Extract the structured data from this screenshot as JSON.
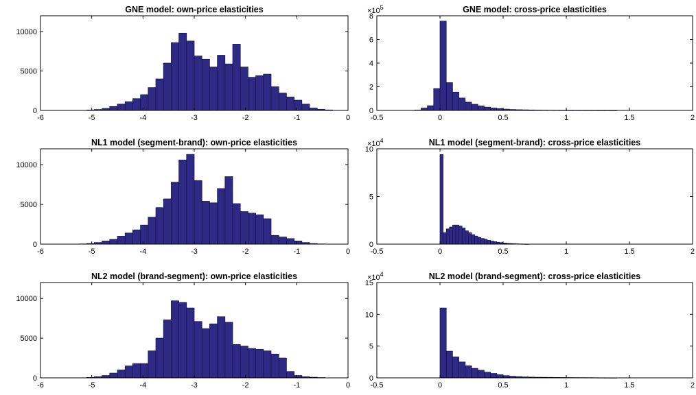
{
  "figure": {
    "colors": {
      "bar_fill": "#2e2a84",
      "bar_stroke": "#15124d",
      "axis": "#000000",
      "background": "#ffffff"
    }
  },
  "chart_data": [
    {
      "type": "bar",
      "title": "GNE model: own-price elasticities",
      "xlabel": "",
      "ylabel": "",
      "xlim": [
        -6,
        0
      ],
      "ylim": [
        0,
        12000
      ],
      "xticks": [
        -6,
        -5,
        -4,
        -3,
        -2,
        -1,
        0
      ],
      "xtick_labels": [
        "-6",
        "-5",
        "-4",
        "-3",
        "-2",
        "-1",
        "0"
      ],
      "yticks": [
        0,
        5000,
        10000
      ],
      "ytick_labels": [
        "0",
        "5000",
        "10000"
      ],
      "exponent_label": "",
      "bin_edges": [
        -6.0,
        -5.85,
        -5.7,
        -5.55,
        -5.4,
        -5.25,
        -5.1,
        -4.95,
        -4.8,
        -4.65,
        -4.5,
        -4.35,
        -4.2,
        -4.05,
        -3.9,
        -3.75,
        -3.6,
        -3.45,
        -3.3,
        -3.15,
        -3.0,
        -2.85,
        -2.7,
        -2.55,
        -2.4,
        -2.25,
        -2.1,
        -1.95,
        -1.8,
        -1.65,
        -1.5,
        -1.35,
        -1.2,
        -1.05,
        -0.9,
        -0.75,
        -0.6,
        -0.45,
        -0.3,
        -0.15,
        0.0
      ],
      "values": [
        0,
        0,
        0,
        0,
        0,
        0,
        50,
        120,
        250,
        500,
        800,
        1100,
        1500,
        2000,
        2900,
        4000,
        6000,
        8600,
        9800,
        8800,
        6900,
        6500,
        5500,
        7000,
        5900,
        8400,
        5500,
        4200,
        4400,
        4600,
        3000,
        2200,
        1700,
        1300,
        800,
        300,
        150,
        60,
        0,
        0
      ]
    },
    {
      "type": "bar",
      "title": "GNE model: cross-price elasticities",
      "xlabel": "",
      "ylabel": "",
      "xlim": [
        -0.5,
        2
      ],
      "ylim": [
        0,
        800000
      ],
      "xticks": [
        -0.5,
        0,
        0.5,
        1,
        1.5,
        2
      ],
      "xtick_labels": [
        "-0.5",
        "0",
        "0.5",
        "1",
        "1.5",
        "2"
      ],
      "yticks": [
        0,
        200000,
        400000,
        600000,
        800000
      ],
      "ytick_labels": [
        "0",
        "2",
        "4",
        "6",
        "8"
      ],
      "exponent_label": "5",
      "bin_edges": [
        -0.5,
        -0.45,
        -0.4,
        -0.35,
        -0.3,
        -0.25,
        -0.2,
        -0.15,
        -0.1,
        -0.05,
        0.0,
        0.05,
        0.1,
        0.15,
        0.2,
        0.25,
        0.3,
        0.35,
        0.4,
        0.45,
        0.5,
        0.55,
        0.6,
        0.65,
        0.7,
        0.75,
        0.8,
        0.85,
        0.9,
        0.95,
        1.0,
        1.05,
        1.1,
        1.15,
        1.2,
        1.25,
        1.3,
        1.35,
        1.4,
        1.45,
        1.5,
        1.55,
        1.6,
        1.65,
        1.7,
        1.75,
        1.8,
        1.85,
        1.9,
        1.95,
        2.0
      ],
      "values": [
        0,
        0,
        0,
        0,
        0,
        0,
        3000,
        20000,
        40000,
        185000,
        755000,
        235000,
        155000,
        105000,
        70000,
        52000,
        38000,
        28000,
        20000,
        15000,
        11000,
        8000,
        6000,
        5000,
        4000,
        3000,
        2500,
        2000,
        1500,
        1200,
        1000,
        800,
        700,
        600,
        500,
        400,
        300,
        200,
        0,
        0,
        0,
        0,
        0,
        0,
        0,
        0,
        0,
        0,
        0,
        0
      ]
    },
    {
      "type": "bar",
      "title": "NL1 model (segment-brand): own-price elasticities",
      "xlabel": "",
      "ylabel": "",
      "xlim": [
        -6,
        0
      ],
      "ylim": [
        0,
        12000
      ],
      "xticks": [
        -6,
        -5,
        -4,
        -3,
        -2,
        -1,
        0
      ],
      "xtick_labels": [
        "-6",
        "-5",
        "-4",
        "-3",
        "-2",
        "-1",
        "0"
      ],
      "yticks": [
        0,
        5000,
        10000
      ],
      "ytick_labels": [
        "0",
        "5000",
        "10000"
      ],
      "exponent_label": "",
      "bin_edges": [
        -6.0,
        -5.85,
        -5.7,
        -5.55,
        -5.4,
        -5.25,
        -5.1,
        -4.95,
        -4.8,
        -4.65,
        -4.5,
        -4.35,
        -4.2,
        -4.05,
        -3.9,
        -3.75,
        -3.6,
        -3.45,
        -3.3,
        -3.15,
        -3.0,
        -2.85,
        -2.7,
        -2.55,
        -2.4,
        -2.25,
        -2.1,
        -1.95,
        -1.8,
        -1.65,
        -1.5,
        -1.35,
        -1.2,
        -1.05,
        -0.9,
        -0.75,
        -0.6,
        -0.45,
        -0.3,
        -0.15,
        0.0
      ],
      "values": [
        0,
        0,
        0,
        0,
        0,
        30,
        80,
        200,
        400,
        600,
        1000,
        1400,
        1800,
        2400,
        3400,
        4600,
        5700,
        7800,
        10600,
        11300,
        8000,
        5400,
        5200,
        7000,
        8500,
        5100,
        4100,
        3900,
        3700,
        3200,
        1100,
        900,
        700,
        400,
        200,
        80,
        30,
        0,
        0,
        0
      ]
    },
    {
      "type": "bar",
      "title": "NL1 model (segment-brand): cross-price elasticities",
      "xlabel": "",
      "ylabel": "",
      "xlim": [
        -0.5,
        2
      ],
      "ylim": [
        0,
        100000
      ],
      "xticks": [
        -0.5,
        0,
        0.5,
        1,
        1.5,
        2
      ],
      "xtick_labels": [
        "-0.5",
        "0",
        "0.5",
        "1",
        "1.5",
        "2"
      ],
      "yticks": [
        0,
        50000,
        100000
      ],
      "ytick_labels": [
        "0",
        "5",
        "10"
      ],
      "exponent_label": "4",
      "bin_edges": [
        -0.5,
        -0.45,
        -0.4,
        -0.35,
        -0.3,
        -0.25,
        -0.2,
        -0.15,
        -0.1,
        -0.05,
        0.0,
        0.025,
        0.05,
        0.075,
        0.1,
        0.125,
        0.15,
        0.175,
        0.2,
        0.225,
        0.25,
        0.275,
        0.3,
        0.325,
        0.35,
        0.375,
        0.4,
        0.425,
        0.45,
        0.475,
        0.5,
        0.525,
        0.55,
        0.575,
        0.6,
        0.625,
        0.65,
        0.675,
        0.7
      ],
      "values": [
        0,
        0,
        0,
        0,
        0,
        0,
        0,
        0,
        0,
        0,
        94000,
        12000,
        16000,
        18000,
        20000,
        20000,
        19000,
        17000,
        14000,
        12000,
        10000,
        8500,
        7000,
        6000,
        5000,
        4000,
        3200,
        2600,
        2000,
        1600,
        1200,
        900,
        700,
        500,
        350,
        250,
        150,
        100
      ]
    },
    {
      "type": "bar",
      "title": "NL2 model (brand-segment): own-price elasticities",
      "xlabel": "",
      "ylabel": "",
      "xlim": [
        -6,
        0
      ],
      "ylim": [
        0,
        12000
      ],
      "xticks": [
        -6,
        -5,
        -4,
        -3,
        -2,
        -1,
        0
      ],
      "xtick_labels": [
        "-6",
        "-5",
        "-4",
        "-3",
        "-2",
        "-1",
        "0"
      ],
      "yticks": [
        0,
        5000,
        10000
      ],
      "ytick_labels": [
        "0",
        "5000",
        "10000"
      ],
      "exponent_label": "",
      "bin_edges": [
        -6.0,
        -5.85,
        -5.7,
        -5.55,
        -5.4,
        -5.25,
        -5.1,
        -4.95,
        -4.8,
        -4.65,
        -4.5,
        -4.35,
        -4.2,
        -4.05,
        -3.9,
        -3.75,
        -3.6,
        -3.45,
        -3.3,
        -3.15,
        -3.0,
        -2.85,
        -2.7,
        -2.55,
        -2.4,
        -2.25,
        -2.1,
        -1.95,
        -1.8,
        -1.65,
        -1.5,
        -1.35,
        -1.2,
        -1.05,
        -0.9,
        -0.75,
        -0.6,
        -0.45,
        -0.3,
        -0.15,
        0.0
      ],
      "values": [
        0,
        0,
        0,
        0,
        0,
        0,
        50,
        150,
        300,
        600,
        1000,
        1500,
        1800,
        1800,
        3400,
        5000,
        7300,
        9700,
        9500,
        8800,
        7100,
        6200,
        6800,
        7700,
        7000,
        4200,
        4000,
        3700,
        3600,
        3400,
        3000,
        2500,
        800,
        300,
        150,
        80,
        40,
        0,
        0,
        0
      ]
    },
    {
      "type": "bar",
      "title": "NL2 model (brand-segment): cross-price elasticities",
      "xlabel": "",
      "ylabel": "",
      "xlim": [
        -0.5,
        2
      ],
      "ylim": [
        0,
        150000
      ],
      "xticks": [
        -0.5,
        0,
        0.5,
        1,
        1.5,
        2
      ],
      "xtick_labels": [
        "-0.5",
        "0",
        "0.5",
        "1",
        "1.5",
        "2"
      ],
      "yticks": [
        0,
        50000,
        100000,
        150000
      ],
      "ytick_labels": [
        "0",
        "5",
        "10",
        "15"
      ],
      "exponent_label": "4",
      "bin_edges": [
        -0.5,
        -0.45,
        -0.4,
        -0.35,
        -0.3,
        -0.25,
        -0.2,
        -0.15,
        -0.1,
        -0.05,
        0.0,
        0.05,
        0.1,
        0.15,
        0.2,
        0.25,
        0.3,
        0.35,
        0.4,
        0.45,
        0.5,
        0.55,
        0.6,
        0.65,
        0.7,
        0.75,
        0.8,
        0.85,
        0.9,
        0.95,
        1.0,
        1.05,
        1.1,
        1.15,
        1.2,
        1.25,
        1.3,
        1.35,
        1.4,
        1.45,
        1.5,
        1.55,
        1.6,
        1.65,
        1.7,
        1.75,
        1.8,
        1.85,
        1.9,
        1.95,
        2.0
      ],
      "values": [
        0,
        0,
        0,
        0,
        0,
        0,
        0,
        0,
        0,
        0,
        110000,
        42000,
        33000,
        25000,
        19000,
        15000,
        12000,
        9000,
        7000,
        5000,
        3500,
        2500,
        2000,
        1500,
        1200,
        1000,
        900,
        800,
        700,
        600,
        500,
        450,
        400,
        350,
        300,
        200,
        100,
        50,
        0,
        0,
        0,
        0,
        0,
        0,
        0,
        0,
        0,
        0,
        0,
        0
      ]
    }
  ]
}
